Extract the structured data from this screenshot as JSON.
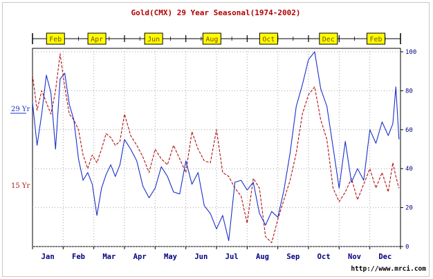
{
  "chart_data": {
    "type": "line",
    "title": "Gold(CMX) 29 Year Seasonal(1974-2002)",
    "x_months": [
      "Jan",
      "Feb",
      "Mar",
      "Apr",
      "May",
      "Jun",
      "Jul",
      "Aug",
      "Sep",
      "Oct",
      "Nov",
      "Dec"
    ],
    "top_months": [
      "Feb",
      "Apr",
      "Jun",
      "Aug",
      "Oct",
      "Dec",
      "Feb"
    ],
    "y_ticks": [
      0,
      20,
      40,
      60,
      80,
      100
    ],
    "ylim": [
      0,
      100
    ],
    "source": "http://www.mrci.com",
    "colors": {
      "s29": "#1a2fc8",
      "s15": "#b01010",
      "axis": "#000080",
      "title": "#b00000",
      "box": "#ffff00"
    },
    "series": [
      {
        "name": "29 Yr",
        "style": "solid",
        "x": [
          0,
          0.15,
          0.3,
          0.45,
          0.6,
          0.75,
          0.9,
          1.05,
          1.2,
          1.35,
          1.5,
          1.65,
          1.8,
          1.95,
          2.1,
          2.25,
          2.4,
          2.55,
          2.7,
          2.85,
          3,
          3.2,
          3.4,
          3.6,
          3.8,
          4,
          4.2,
          4.4,
          4.6,
          4.8,
          5,
          5.2,
          5.4,
          5.6,
          5.8,
          6,
          6.2,
          6.4,
          6.6,
          6.8,
          7,
          7.2,
          7.4,
          7.6,
          7.8,
          8,
          8.2,
          8.4,
          8.6,
          8.8,
          9,
          9.2,
          9.4,
          9.6,
          9.8,
          10,
          10.2,
          10.4,
          10.6,
          10.8,
          11,
          11.2,
          11.4,
          11.6,
          11.75,
          11.85,
          11.95
        ],
        "values": [
          74,
          52,
          68,
          88,
          79,
          50,
          86,
          89,
          73,
          65,
          45,
          34,
          38,
          32,
          16,
          30,
          37,
          42,
          36,
          42,
          55,
          50,
          44,
          31,
          25,
          30,
          41,
          36,
          28,
          27,
          44,
          32,
          38,
          21,
          17,
          9,
          16,
          3,
          33,
          34,
          29,
          33,
          17,
          11,
          18,
          15,
          29,
          48,
          72,
          83,
          96,
          100,
          81,
          72,
          51,
          30,
          54,
          33,
          40,
          34,
          60,
          53,
          64,
          57,
          63,
          82,
          55
        ]
      },
      {
        "name": "15 Yr",
        "style": "dashed",
        "x": [
          0,
          0.15,
          0.3,
          0.45,
          0.6,
          0.75,
          0.9,
          1.05,
          1.2,
          1.35,
          1.5,
          1.65,
          1.8,
          1.95,
          2.1,
          2.25,
          2.4,
          2.55,
          2.7,
          2.85,
          3,
          3.2,
          3.4,
          3.6,
          3.8,
          4,
          4.2,
          4.4,
          4.6,
          4.8,
          5,
          5.2,
          5.4,
          5.6,
          5.8,
          6,
          6.2,
          6.4,
          6.6,
          6.8,
          7,
          7.2,
          7.4,
          7.6,
          7.8,
          8,
          8.2,
          8.4,
          8.6,
          8.8,
          9,
          9.2,
          9.4,
          9.6,
          9.8,
          10,
          10.2,
          10.4,
          10.6,
          10.8,
          11,
          11.2,
          11.4,
          11.6,
          11.75,
          11.85,
          11.95
        ],
        "values": [
          88,
          70,
          80,
          74,
          68,
          80,
          99,
          82,
          68,
          65,
          60,
          47,
          40,
          47,
          43,
          50,
          58,
          56,
          52,
          54,
          68,
          57,
          52,
          46,
          38,
          50,
          45,
          42,
          52,
          45,
          38,
          59,
          50,
          44,
          43,
          60,
          38,
          36,
          30,
          26,
          12,
          35,
          30,
          5,
          2,
          14,
          24,
          34,
          48,
          68,
          78,
          82,
          65,
          55,
          30,
          23,
          28,
          35,
          24,
          32,
          40,
          30,
          38,
          28,
          43,
          36,
          30
        ]
      }
    ]
  },
  "labels": {
    "title": "Gold(CMX) 29 Year Seasonal(1974-2002)",
    "series_29": "29 Yr",
    "series_15": "15 Yr",
    "url": "http://www.mrci.com"
  }
}
